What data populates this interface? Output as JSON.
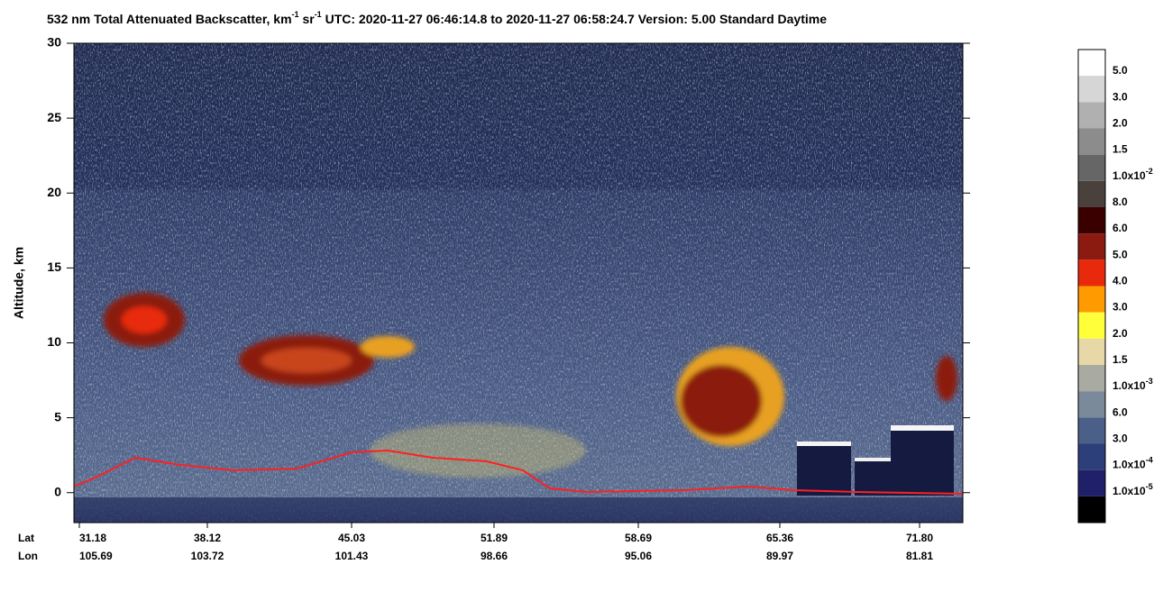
{
  "chart_data": {
    "type": "lidar-curtain",
    "title": [
      "532 nm Total Attenuated Backscatter, km",
      "-1",
      " sr",
      "-1",
      "    UTC:  2020-11-27 06:46:14.8  to  2020-11-27 06:58:24.7    Version: 5.00  Standard  Daytime"
    ],
    "y_label": "Altitude, km",
    "ylim": [
      -2,
      30
    ],
    "yticks": [
      0,
      5,
      10,
      15,
      20,
      25,
      30
    ],
    "x_rows": [
      "Lat",
      "Lon"
    ],
    "categories": [
      "31.18",
      "38.12",
      "45.03",
      "51.89",
      "58.69",
      "65.36",
      "71.80"
    ],
    "lon": [
      "105.69",
      "103.72",
      "101.43",
      "98.66",
      "95.06",
      "89.97",
      "81.81"
    ],
    "colorbar": {
      "colors": [
        "#ffffff",
        "#d6d6d6",
        "#b0b0b0",
        "#8c8c8c",
        "#666666",
        "#4a403c",
        "#3a0000",
        "#8b1a10",
        "#e8290b",
        "#ff9a00",
        "#ffff3a",
        "#e8d8a8",
        "#a9aaa2",
        "#7a8a9a",
        "#4a6088",
        "#2c3f7a",
        "#20206a",
        "#000000"
      ],
      "labels": [
        [
          "5.0"
        ],
        [
          "3.0"
        ],
        [
          "2.0"
        ],
        [
          "1.5"
        ],
        [
          "1.0x10",
          "-2"
        ],
        [
          "8.0"
        ],
        [
          "6.0"
        ],
        [
          "5.0"
        ],
        [
          "4.0"
        ],
        [
          "3.0"
        ],
        [
          "2.0"
        ],
        [
          "1.5"
        ],
        [
          "1.0x10",
          "-3"
        ],
        [
          "6.0"
        ],
        [
          "3.0"
        ],
        [
          "1.0x10",
          "-4"
        ],
        [
          "1.0x10",
          "-5"
        ]
      ]
    }
  }
}
